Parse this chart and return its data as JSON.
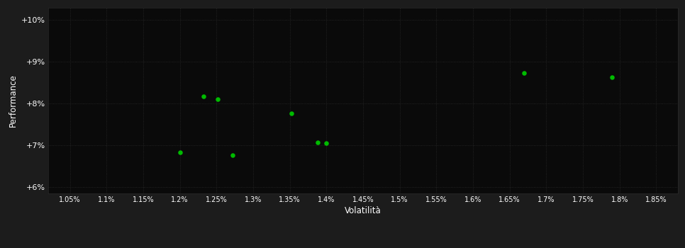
{
  "background_color": "#1c1c1c",
  "plot_bg_color": "#0a0a0a",
  "grid_color": "#2a2a2a",
  "text_color": "#ffffff",
  "dot_color": "#00bb00",
  "xlabel": "Volatilità",
  "ylabel": "Performance",
  "xlim": [
    1.02,
    1.88
  ],
  "ylim": [
    5.85,
    10.3
  ],
  "xticks": [
    1.05,
    1.1,
    1.15,
    1.2,
    1.25,
    1.3,
    1.35,
    1.4,
    1.45,
    1.5,
    1.55,
    1.6,
    1.65,
    1.7,
    1.75,
    1.8,
    1.85
  ],
  "xtick_labels": [
    "1.05%",
    "1.1%",
    "1.15%",
    "1.2%",
    "1.25%",
    "1.3%",
    "1.35%",
    "1.4%",
    "1.45%",
    "1.5%",
    "1.55%",
    "1.6%",
    "1.65%",
    "1.7%",
    "1.75%",
    "1.8%",
    "1.85%"
  ],
  "yticks": [
    6.0,
    7.0,
    8.0,
    9.0,
    10.0
  ],
  "ytick_labels": [
    "+6%",
    "+7%",
    "+8%",
    "+9%",
    "+10%"
  ],
  "points_x": [
    1.2,
    1.232,
    1.252,
    1.272,
    1.352,
    1.388,
    1.4,
    1.67,
    1.79
  ],
  "points_y": [
    6.83,
    8.18,
    8.1,
    6.76,
    7.77,
    7.07,
    7.05,
    8.73,
    8.63
  ],
  "marker_size": 22
}
